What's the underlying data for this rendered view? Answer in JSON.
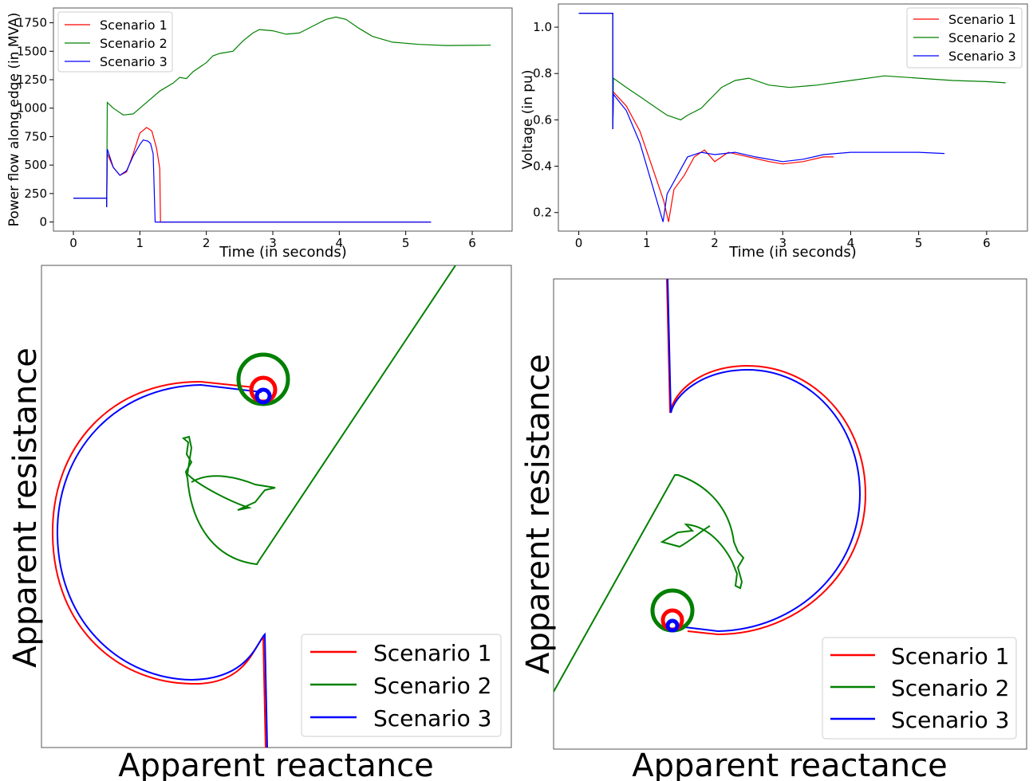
{
  "colors": {
    "scenario_1": "#ff0000",
    "scenario_2": "#008000",
    "scenario_3": "#0000ff"
  },
  "chart_data": [
    {
      "type": "line",
      "id": "power-flow",
      "xlabel": "Time (in seconds)",
      "ylabel": "Power flow along edge (in MVA)",
      "xlim": [
        -0.3,
        6.6
      ],
      "ylim": [
        -80,
        1880
      ],
      "xticks": [
        "0",
        "1",
        "2",
        "3",
        "4",
        "5",
        "6"
      ],
      "yticks": [
        "0",
        "250",
        "500",
        "750",
        "1000",
        "1250",
        "1500",
        "1750"
      ],
      "legend": {
        "position": "top-left",
        "entries": [
          "Scenario 1",
          "Scenario 2",
          "Scenario 3"
        ]
      },
      "series": [
        {
          "name": "Scenario 1",
          "color": "#ff0000",
          "points": [
            [
              0,
              210
            ],
            [
              0.5,
              210
            ],
            [
              0.5,
              130
            ],
            [
              0.51,
              600
            ],
            [
              0.6,
              480
            ],
            [
              0.7,
              410
            ],
            [
              0.8,
              440
            ],
            [
              0.9,
              600
            ],
            [
              1.0,
              780
            ],
            [
              1.1,
              830
            ],
            [
              1.18,
              800
            ],
            [
              1.25,
              650
            ],
            [
              1.3,
              470
            ],
            [
              1.31,
              0
            ],
            [
              2.0,
              0
            ],
            [
              5.38,
              0
            ]
          ]
        },
        {
          "name": "Scenario 2",
          "color": "#008000",
          "points": [
            [
              0,
              210
            ],
            [
              0.5,
              210
            ],
            [
              0.5,
              140
            ],
            [
              0.51,
              1050
            ],
            [
              0.6,
              1000
            ],
            [
              0.75,
              940
            ],
            [
              0.9,
              950
            ],
            [
              1.1,
              1050
            ],
            [
              1.3,
              1150
            ],
            [
              1.5,
              1220
            ],
            [
              1.6,
              1270
            ],
            [
              1.7,
              1260
            ],
            [
              1.8,
              1320
            ],
            [
              2.0,
              1400
            ],
            [
              2.1,
              1460
            ],
            [
              2.2,
              1480
            ],
            [
              2.4,
              1500
            ],
            [
              2.55,
              1590
            ],
            [
              2.7,
              1660
            ],
            [
              2.8,
              1690
            ],
            [
              3.0,
              1680
            ],
            [
              3.2,
              1650
            ],
            [
              3.4,
              1660
            ],
            [
              3.6,
              1720
            ],
            [
              3.8,
              1780
            ],
            [
              3.95,
              1800
            ],
            [
              4.1,
              1780
            ],
            [
              4.3,
              1700
            ],
            [
              4.5,
              1630
            ],
            [
              4.8,
              1580
            ],
            [
              5.2,
              1560
            ],
            [
              5.6,
              1550
            ],
            [
              6.0,
              1552
            ],
            [
              6.28,
              1553
            ]
          ]
        },
        {
          "name": "Scenario 3",
          "color": "#0000ff",
          "points": [
            [
              0,
              210
            ],
            [
              0.5,
              210
            ],
            [
              0.5,
              130
            ],
            [
              0.51,
              640
            ],
            [
              0.6,
              480
            ],
            [
              0.7,
              410
            ],
            [
              0.8,
              450
            ],
            [
              0.9,
              580
            ],
            [
              1.0,
              680
            ],
            [
              1.05,
              720
            ],
            [
              1.12,
              710
            ],
            [
              1.16,
              690
            ],
            [
              1.2,
              600
            ],
            [
              1.23,
              0
            ],
            [
              2.0,
              0
            ],
            [
              5.38,
              0
            ]
          ]
        }
      ]
    },
    {
      "type": "line",
      "id": "voltage",
      "xlabel": "Time (in seconds)",
      "ylabel": "Voltage (in pu)",
      "xlim": [
        -0.3,
        6.6
      ],
      "ylim": [
        0.12,
        1.1
      ],
      "xticks": [
        "0",
        "1",
        "2",
        "3",
        "4",
        "5",
        "6"
      ],
      "yticks": [
        "0.2",
        "0.4",
        "0.6",
        "0.8",
        "1.0"
      ],
      "legend": {
        "position": "top-right",
        "entries": [
          "Scenario 1",
          "Scenario 2",
          "Scenario 3"
        ]
      },
      "series": [
        {
          "name": "Scenario 1",
          "color": "#ff0000",
          "points": [
            [
              0,
              1.06
            ],
            [
              0.5,
              1.06
            ],
            [
              0.5,
              0.56
            ],
            [
              0.51,
              0.72
            ],
            [
              0.7,
              0.66
            ],
            [
              0.9,
              0.55
            ],
            [
              1.1,
              0.38
            ],
            [
              1.25,
              0.25
            ],
            [
              1.32,
              0.16
            ],
            [
              1.4,
              0.3
            ],
            [
              1.55,
              0.36
            ],
            [
              1.7,
              0.44
            ],
            [
              1.85,
              0.47
            ],
            [
              2.0,
              0.42
            ],
            [
              2.2,
              0.46
            ],
            [
              2.5,
              0.44
            ],
            [
              2.8,
              0.42
            ],
            [
              3.0,
              0.41
            ],
            [
              3.3,
              0.42
            ],
            [
              3.6,
              0.44
            ],
            [
              3.75,
              0.44
            ]
          ]
        },
        {
          "name": "Scenario 2",
          "color": "#008000",
          "points": [
            [
              0,
              1.06
            ],
            [
              0.5,
              1.06
            ],
            [
              0.5,
              0.56
            ],
            [
              0.51,
              0.78
            ],
            [
              0.7,
              0.74
            ],
            [
              0.9,
              0.7
            ],
            [
              1.1,
              0.66
            ],
            [
              1.3,
              0.62
            ],
            [
              1.5,
              0.6
            ],
            [
              1.6,
              0.62
            ],
            [
              1.8,
              0.65
            ],
            [
              1.9,
              0.68
            ],
            [
              2.1,
              0.74
            ],
            [
              2.3,
              0.77
            ],
            [
              2.5,
              0.78
            ],
            [
              2.8,
              0.75
            ],
            [
              3.1,
              0.74
            ],
            [
              3.5,
              0.75
            ],
            [
              4.0,
              0.77
            ],
            [
              4.5,
              0.79
            ],
            [
              5.0,
              0.78
            ],
            [
              5.5,
              0.77
            ],
            [
              6.0,
              0.765
            ],
            [
              6.28,
              0.76
            ]
          ]
        },
        {
          "name": "Scenario 3",
          "color": "#0000ff",
          "points": [
            [
              0,
              1.06
            ],
            [
              0.5,
              1.06
            ],
            [
              0.5,
              0.56
            ],
            [
              0.51,
              0.71
            ],
            [
              0.7,
              0.64
            ],
            [
              0.9,
              0.5
            ],
            [
              1.05,
              0.35
            ],
            [
              1.18,
              0.22
            ],
            [
              1.24,
              0.16
            ],
            [
              1.3,
              0.28
            ],
            [
              1.45,
              0.36
            ],
            [
              1.6,
              0.44
            ],
            [
              1.8,
              0.46
            ],
            [
              2.0,
              0.45
            ],
            [
              2.3,
              0.46
            ],
            [
              2.6,
              0.44
            ],
            [
              3.0,
              0.42
            ],
            [
              3.3,
              0.43
            ],
            [
              3.6,
              0.45
            ],
            [
              4.0,
              0.46
            ],
            [
              4.5,
              0.46
            ],
            [
              5.0,
              0.46
            ],
            [
              5.38,
              0.455
            ]
          ]
        }
      ]
    },
    {
      "type": "line",
      "id": "impedance-left",
      "xlabel": "Apparent reactance",
      "ylabel": "Apparent resistance",
      "legend": {
        "position": "lower-right",
        "entries": [
          "Scenario 1",
          "Scenario 2",
          "Scenario 3"
        ]
      },
      "series": [
        {
          "name": "Scenario 1",
          "color": "#ff0000"
        },
        {
          "name": "Scenario 2",
          "color": "#008000"
        },
        {
          "name": "Scenario 3",
          "color": "#0000ff"
        }
      ]
    },
    {
      "type": "line",
      "id": "impedance-right",
      "xlabel": "Apparent reactance",
      "ylabel": "Apparent resistance",
      "legend": {
        "position": "lower-right",
        "entries": [
          "Scenario 1",
          "Scenario 2",
          "Scenario 3"
        ]
      },
      "series": [
        {
          "name": "Scenario 1",
          "color": "#ff0000"
        },
        {
          "name": "Scenario 2",
          "color": "#008000"
        },
        {
          "name": "Scenario 3",
          "color": "#0000ff"
        }
      ]
    }
  ]
}
